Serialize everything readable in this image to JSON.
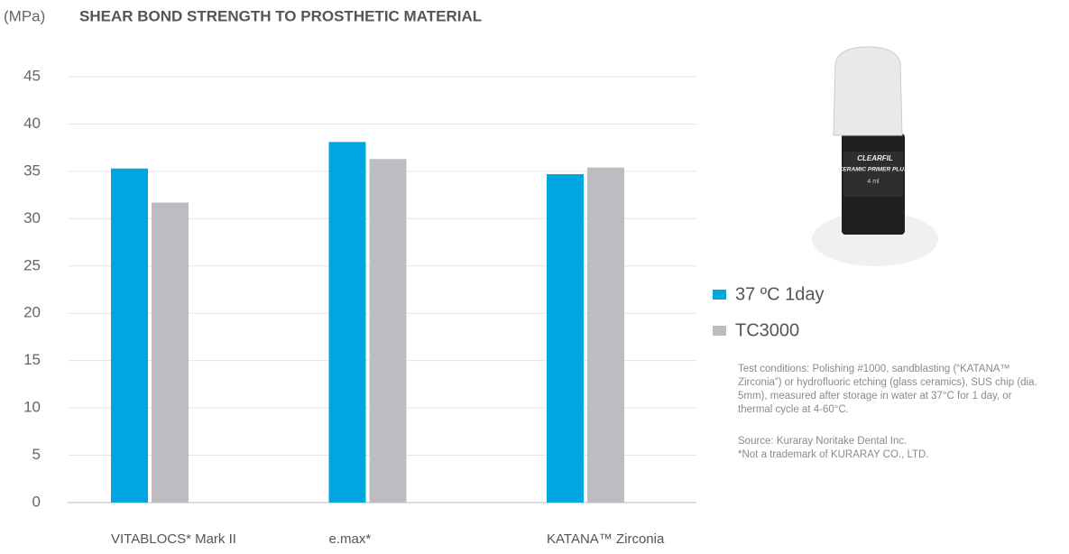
{
  "chart_data": {
    "type": "bar",
    "y_label": "(MPa)",
    "title": "SHEAR BOND STRENGTH TO PROSTHETIC MATERIAL",
    "categories": [
      "VITABLOCS* Mark II",
      "e.max*",
      "KATANA™ Zirconia"
    ],
    "series": [
      {
        "name": "37 ºC 1day",
        "color": "#00a6e0",
        "values": [
          35.3,
          38.1,
          34.7
        ]
      },
      {
        "name": "TC3000",
        "color": "#bdbdc1",
        "values": [
          31.7,
          36.3,
          35.4
        ]
      }
    ],
    "ylim": [
      0,
      45
    ],
    "yticks": [
      0,
      5,
      10,
      15,
      20,
      25,
      30,
      35,
      40,
      45
    ],
    "grid": true,
    "product_label": [
      "CLEARFIL",
      "CERAMIC PRIMER PLUS",
      "4 ml"
    ],
    "annotations": [
      "Test conditions: Polishing #1000, sandblasting (“KATANA™ Zirconia”) or hydrofluoric etching (glass ceramics), SUS chip (dia. 5mm), measured after storage in water at 37°C for 1 day, or thermal cycle at 4-60°C.",
      "Source: Kuraray Noritake Dental Inc.",
      "*Not a trademark of KURARAY CO., LTD."
    ]
  }
}
